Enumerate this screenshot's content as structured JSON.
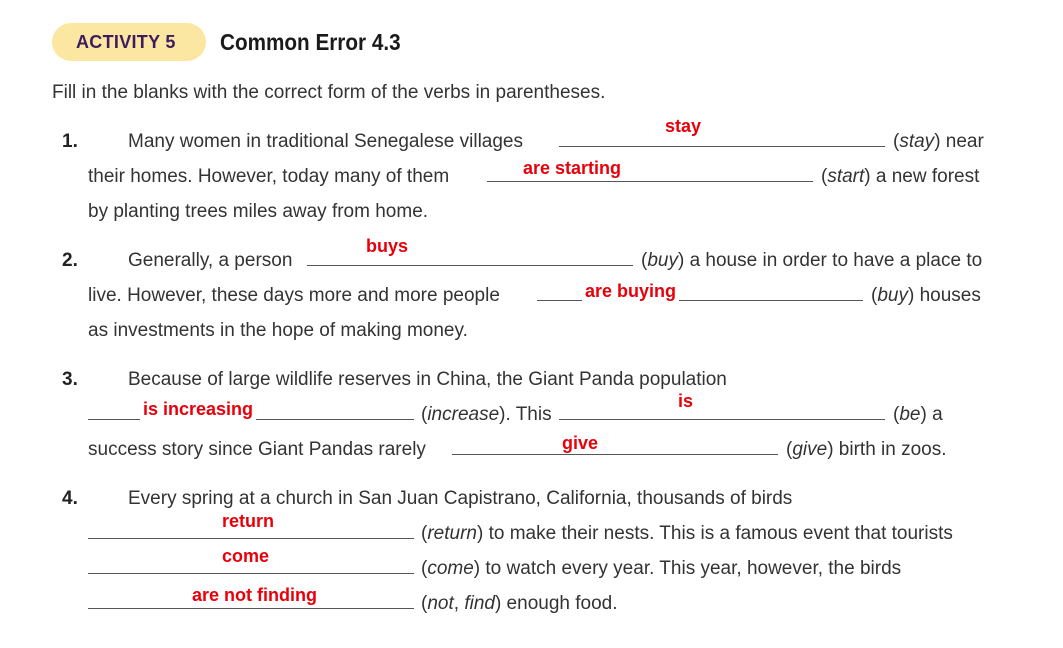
{
  "header": {
    "activity_label": "ACTIVITY 5",
    "title": "Common Error 4.3"
  },
  "instructions": "Fill in the blanks with the correct form of the verbs in parentheses.",
  "items": [
    {
      "number": "1.",
      "l1_text": "Many women in traditional Senegalese villages",
      "l1_hint": "(stay) near",
      "l2_text": "their homes. However, today many of them",
      "l2_hint": "(start) a new forest",
      "l3_text": "by planting trees miles away from home.",
      "answers": [
        "stay",
        "are starting"
      ]
    },
    {
      "number": "2.",
      "l1_text": "Generally, a person",
      "l1_hint": "(buy) a house in order to have a place to",
      "l2_text": "live. However, these days more and more people",
      "l2_hint": "(buy) houses",
      "l3_text": "as investments in the hope of making money.",
      "answers": [
        "buys",
        "are buying"
      ]
    },
    {
      "number": "3.",
      "l1_text": "Because of large wildlife reserves in China, the Giant Panda population",
      "l2_hint_a": "(increase). This",
      "l2_hint_b": "(be) a",
      "l3_text": "success story since Giant Pandas rarely",
      "l3_hint": "(give) birth in zoos.",
      "answers": [
        "is increasing",
        "is",
        "give"
      ]
    },
    {
      "number": "4.",
      "l1_text": "Every spring at a church in San Juan Capistrano, California, thousands of birds",
      "l2_hint": "(return) to make their nests. This is a famous event that tourists",
      "l3_hint": "(come) to watch every year. This year, however, the birds",
      "l4_hint": "(not, find) enough food.",
      "answers": [
        "return",
        "come",
        "are not finding"
      ]
    }
  ]
}
